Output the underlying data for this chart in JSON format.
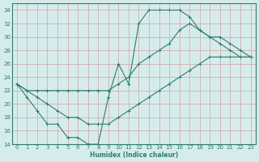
{
  "xlabel": "Humidex (Indice chaleur)",
  "background_color": "#d6ecec",
  "grid_color": "#c8dede",
  "line_color": "#2e7d6e",
  "xlim": [
    -0.5,
    23.5
  ],
  "ylim": [
    14,
    35
  ],
  "xticks": [
    0,
    1,
    2,
    3,
    4,
    5,
    6,
    7,
    8,
    9,
    10,
    11,
    12,
    13,
    14,
    15,
    16,
    17,
    18,
    19,
    20,
    21,
    22,
    23
  ],
  "yticks": [
    14,
    16,
    18,
    20,
    22,
    24,
    26,
    28,
    30,
    32,
    34
  ],
  "line1_x": [
    0,
    1,
    2,
    3,
    4,
    5,
    6,
    7,
    8,
    9,
    10,
    11,
    12,
    13,
    14,
    15,
    16,
    17,
    18,
    19,
    20,
    21,
    22,
    23
  ],
  "line1_y": [
    23,
    21,
    19,
    17,
    17,
    15,
    15,
    14,
    14,
    21,
    26,
    23,
    32,
    34,
    34,
    34,
    34,
    33,
    31,
    30,
    29,
    28,
    27,
    27
  ],
  "line2_x": [
    0,
    1,
    2,
    3,
    4,
    5,
    6,
    7,
    8,
    9,
    10,
    11,
    12,
    13,
    14,
    15,
    16,
    17,
    18,
    19,
    20,
    21,
    22,
    23
  ],
  "line2_y": [
    23,
    22,
    22,
    22,
    22,
    22,
    22,
    22,
    22,
    22,
    23,
    24,
    26,
    27,
    28,
    29,
    31,
    32,
    31,
    30,
    30,
    29,
    28,
    27
  ],
  "line3_x": [
    0,
    1,
    2,
    3,
    4,
    5,
    6,
    7,
    8,
    9,
    10,
    11,
    12,
    13,
    14,
    15,
    16,
    17,
    18,
    19,
    20,
    21,
    22,
    23
  ],
  "line3_y": [
    23,
    22,
    21,
    20,
    19,
    18,
    18,
    17,
    17,
    17,
    18,
    19,
    20,
    21,
    22,
    23,
    24,
    25,
    26,
    27,
    27,
    27,
    27,
    27
  ]
}
